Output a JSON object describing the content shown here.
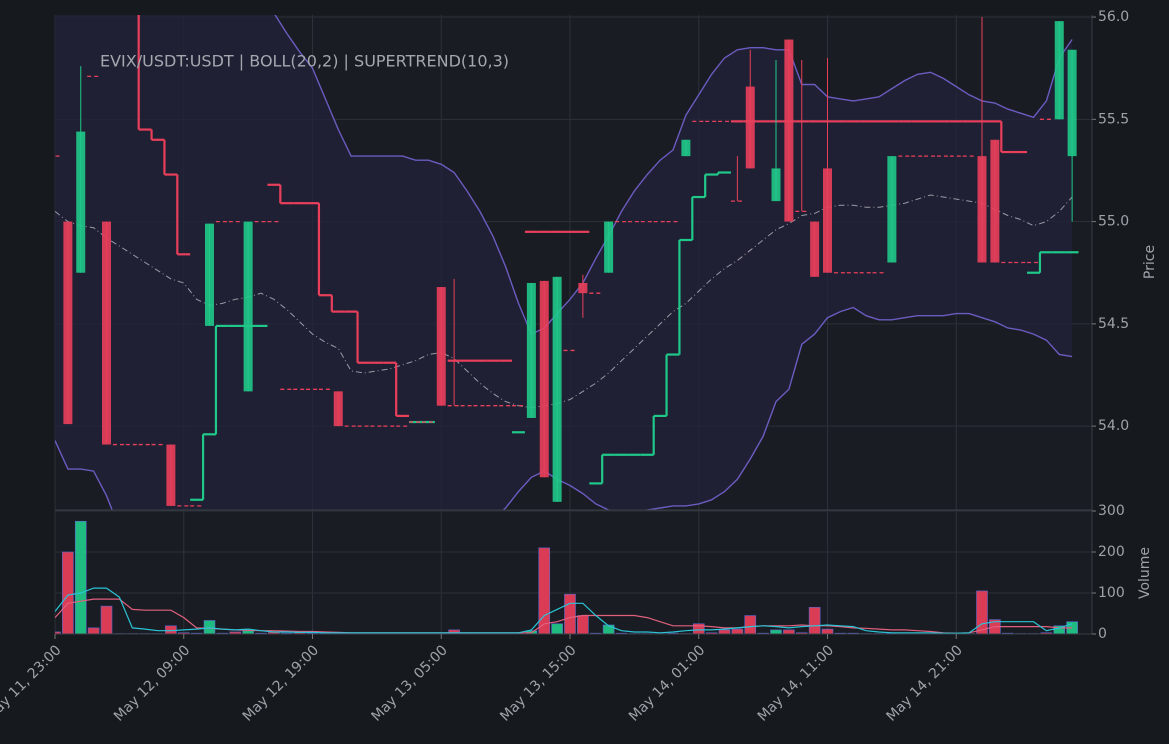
{
  "chart_data": [
    {
      "type": "candlestick",
      "title": "EVIX/USDT:USDT | BOLL(20,2) | SUPERTREND(10,3)",
      "ylabel": "Price",
      "up_color": "#20c98a",
      "down_color": "#ea3f5b",
      "ylim": [
        53.59,
        56.01
      ],
      "yticks": [
        {
          "value": 54.0,
          "label": "54.0"
        },
        {
          "value": 54.5,
          "label": "54.5"
        },
        {
          "value": 55.0,
          "label": "55.0"
        },
        {
          "value": 55.5,
          "label": "55.5"
        },
        {
          "value": 56.0,
          "label": "56.0"
        }
      ],
      "grid": true,
      "open": [
        55.32,
        55.0,
        54.75,
        55.71,
        55.0,
        53.91,
        53.91,
        53.91,
        53.91,
        53.91,
        53.61,
        53.61,
        54.49,
        55.0,
        55.0,
        54.17,
        55.0,
        55.0,
        54.18,
        54.18,
        54.18,
        54.18,
        54.17,
        54.0,
        54.0,
        54.0,
        54.0,
        54.0,
        54.02,
        54.02,
        54.68,
        54.1,
        54.1,
        54.1,
        54.1,
        54.1,
        54.1,
        54.04,
        54.71,
        53.63,
        54.37,
        54.7,
        54.65,
        54.75,
        55.0,
        55.0,
        55.0,
        55.0,
        55.0,
        55.32,
        55.49,
        55.49,
        55.49,
        55.1,
        55.66,
        55.49,
        55.1,
        55.89,
        55.05,
        55.0,
        55.26,
        54.75,
        54.75,
        54.75,
        54.75,
        54.8,
        55.32,
        55.32,
        55.32,
        55.32,
        55.32,
        55.32,
        55.32,
        55.4,
        54.8,
        54.8,
        54.8,
        55.5,
        55.5,
        55.32
      ],
      "high": [
        55.32,
        55.0,
        55.76,
        55.71,
        55.0,
        53.91,
        53.91,
        53.91,
        53.91,
        53.91,
        53.61,
        53.61,
        54.99,
        55.0,
        55.0,
        55.0,
        55.0,
        55.0,
        54.18,
        54.18,
        54.18,
        54.18,
        54.17,
        54.0,
        54.0,
        54.0,
        54.0,
        54.0,
        54.02,
        54.02,
        54.68,
        54.72,
        54.1,
        54.1,
        54.1,
        54.1,
        54.1,
        54.7,
        54.71,
        54.73,
        54.37,
        54.74,
        54.65,
        55.0,
        55.0,
        55.0,
        55.0,
        55.0,
        55.0,
        55.4,
        55.49,
        55.49,
        55.49,
        55.32,
        55.84,
        55.49,
        55.79,
        55.89,
        55.79,
        55.0,
        55.8,
        54.75,
        54.75,
        54.75,
        54.75,
        55.32,
        55.32,
        55.32,
        55.32,
        55.32,
        55.32,
        55.32,
        56.0,
        55.4,
        54.8,
        54.8,
        54.8,
        55.5,
        55.98,
        55.84
      ],
      "low": [
        55.32,
        54.01,
        54.75,
        55.71,
        53.91,
        53.91,
        53.91,
        53.91,
        53.91,
        53.61,
        53.61,
        53.61,
        54.49,
        55.0,
        55.0,
        54.17,
        55.0,
        55.0,
        54.18,
        54.18,
        54.18,
        54.18,
        54.0,
        54.0,
        54.0,
        54.0,
        54.0,
        54.0,
        54.02,
        54.02,
        54.1,
        54.1,
        54.1,
        54.1,
        54.1,
        54.1,
        54.1,
        54.04,
        53.75,
        53.63,
        54.37,
        54.53,
        54.65,
        54.75,
        55.0,
        55.0,
        55.0,
        55.0,
        55.0,
        55.32,
        55.49,
        55.49,
        55.49,
        55.1,
        55.26,
        55.49,
        55.1,
        55.0,
        55.05,
        54.73,
        54.75,
        54.75,
        54.75,
        54.75,
        54.75,
        54.8,
        55.32,
        55.32,
        55.32,
        55.32,
        55.32,
        55.32,
        54.8,
        54.8,
        54.8,
        54.8,
        54.8,
        55.5,
        55.5,
        55.0
      ],
      "close": [
        55.32,
        54.01,
        55.44,
        55.71,
        53.91,
        53.91,
        53.91,
        53.91,
        53.91,
        53.61,
        53.61,
        53.61,
        54.99,
        55.0,
        55.0,
        55.0,
        55.0,
        55.0,
        54.18,
        54.18,
        54.18,
        54.18,
        54.0,
        54.0,
        54.0,
        54.0,
        54.0,
        54.0,
        54.02,
        54.02,
        54.1,
        54.1,
        54.1,
        54.1,
        54.1,
        54.1,
        54.1,
        54.7,
        53.75,
        54.73,
        54.37,
        54.65,
        54.65,
        55.0,
        55.0,
        55.0,
        55.0,
        55.0,
        55.0,
        55.4,
        55.49,
        55.49,
        55.49,
        55.1,
        55.26,
        55.49,
        55.26,
        55.0,
        55.05,
        54.73,
        54.75,
        54.75,
        54.75,
        54.75,
        54.75,
        55.32,
        55.32,
        55.32,
        55.32,
        55.32,
        55.32,
        55.32,
        54.8,
        54.8,
        54.8,
        54.8,
        54.8,
        55.5,
        55.98,
        55.84
      ],
      "bollinger": {
        "color": "#6a5cc0",
        "middle_color": "#9a9aa4",
        "fill": "#22223a",
        "upper": [
          56.4,
          56.4,
          56.4,
          56.4,
          56.4,
          56.4,
          56.4,
          56.4,
          56.4,
          56.4,
          56.4,
          56.4,
          56.4,
          56.4,
          56.3,
          56.2,
          56.1,
          56.02,
          55.92,
          55.83,
          55.75,
          55.6,
          55.45,
          55.32,
          55.32,
          55.32,
          55.32,
          55.32,
          55.3,
          55.3,
          55.28,
          55.24,
          55.15,
          55.05,
          54.93,
          54.78,
          54.6,
          54.45,
          54.48,
          54.55,
          54.62,
          54.7,
          54.82,
          54.93,
          55.05,
          55.15,
          55.23,
          55.3,
          55.35,
          55.52,
          55.62,
          55.72,
          55.8,
          55.84,
          55.85,
          55.85,
          55.84,
          55.84,
          55.67,
          55.67,
          55.61,
          55.6,
          55.59,
          55.6,
          55.61,
          55.65,
          55.69,
          55.72,
          55.73,
          55.7,
          55.66,
          55.62,
          55.59,
          55.58,
          55.55,
          55.53,
          55.51,
          55.59,
          55.8,
          55.89
        ],
        "middle": [
          55.05,
          55.0,
          54.98,
          54.97,
          54.92,
          54.88,
          54.84,
          54.8,
          54.76,
          54.72,
          54.7,
          54.62,
          54.59,
          54.6,
          54.62,
          54.63,
          54.65,
          54.62,
          54.57,
          54.51,
          54.45,
          54.41,
          54.38,
          54.27,
          54.26,
          54.27,
          54.28,
          54.3,
          54.32,
          54.35,
          54.36,
          54.33,
          54.27,
          54.21,
          54.16,
          54.12,
          54.1,
          54.09,
          54.1,
          54.11,
          54.13,
          54.17,
          54.21,
          54.26,
          54.32,
          54.38,
          54.44,
          54.5,
          54.56,
          54.6,
          54.66,
          54.72,
          54.77,
          54.81,
          54.86,
          54.91,
          54.96,
          54.99,
          55.03,
          55.04,
          55.07,
          55.08,
          55.08,
          55.07,
          55.07,
          55.08,
          55.09,
          55.11,
          55.13,
          55.12,
          55.11,
          55.1,
          55.09,
          55.06,
          55.03,
          55.01,
          54.98,
          55.0,
          55.05,
          55.12
        ],
        "lower": [
          53.93,
          53.79,
          53.79,
          53.78,
          53.66,
          53.5,
          53.3,
          53.3,
          53.3,
          53.3,
          53.3,
          53.3,
          53.3,
          53.2,
          53.2,
          53.2,
          53.2,
          53.2,
          53.2,
          53.2,
          53.2,
          53.2,
          53.2,
          53.2,
          53.2,
          53.2,
          53.2,
          53.2,
          53.2,
          53.2,
          53.2,
          53.3,
          53.4,
          53.5,
          53.55,
          53.6,
          53.68,
          53.75,
          53.78,
          53.74,
          53.71,
          53.67,
          53.62,
          53.59,
          53.58,
          53.58,
          53.59,
          53.6,
          53.61,
          53.61,
          53.62,
          53.64,
          53.68,
          53.74,
          53.84,
          53.95,
          54.12,
          54.18,
          54.4,
          54.45,
          54.53,
          54.56,
          54.58,
          54.54,
          54.52,
          54.52,
          54.53,
          54.54,
          54.54,
          54.54,
          54.55,
          54.55,
          54.53,
          54.51,
          54.48,
          54.47,
          54.45,
          54.42,
          54.35,
          54.34
        ]
      },
      "supertrend": {
        "down_color": "#ea3f5b",
        "up_color": "#20c98a",
        "down": [
          null,
          null,
          null,
          null,
          null,
          null,
          56.1,
          55.45,
          55.4,
          55.23,
          54.84,
          null,
          null,
          null,
          null,
          null,
          null,
          55.18,
          55.09,
          55.09,
          55.09,
          54.64,
          54.56,
          54.56,
          54.31,
          54.31,
          54.31,
          54.05,
          null,
          null,
          null,
          54.32,
          54.32,
          54.32,
          54.32,
          54.32,
          null,
          54.95,
          54.95,
          54.95,
          54.95,
          54.95,
          null,
          null,
          null,
          null,
          null,
          null,
          null,
          null,
          null,
          null,
          null,
          55.49,
          55.49,
          55.49,
          55.49,
          55.49,
          55.49,
          55.49,
          55.49,
          55.49,
          55.49,
          55.49,
          55.49,
          55.49,
          55.49,
          55.49,
          55.49,
          55.49,
          55.49,
          55.49,
          55.49,
          55.49,
          55.34,
          55.34,
          null,
          null,
          null,
          null
        ],
        "up": [
          null,
          null,
          null,
          null,
          null,
          null,
          null,
          null,
          null,
          null,
          null,
          53.64,
          53.96,
          54.49,
          54.49,
          54.49,
          54.49,
          null,
          null,
          null,
          null,
          null,
          null,
          null,
          null,
          null,
          null,
          null,
          54.02,
          54.02,
          null,
          null,
          null,
          null,
          null,
          null,
          53.97,
          null,
          null,
          null,
          null,
          null,
          53.72,
          53.86,
          53.86,
          53.86,
          53.86,
          54.05,
          54.35,
          54.91,
          55.12,
          55.23,
          55.24,
          null,
          null,
          null,
          null,
          null,
          null,
          null,
          null,
          null,
          null,
          null,
          null,
          null,
          null,
          null,
          null,
          null,
          null,
          null,
          null,
          null,
          null,
          null,
          54.75,
          54.85,
          54.85,
          54.85
        ]
      }
    },
    {
      "type": "bar",
      "ylabel": "Volume",
      "categories": [
        "May 11, 23:00",
        null,
        null,
        null,
        null,
        null,
        null,
        null,
        null,
        null,
        "May 12, 09:00",
        null,
        null,
        null,
        null,
        null,
        null,
        null,
        null,
        null,
        "May 12, 19:00",
        null,
        null,
        null,
        null,
        null,
        null,
        null,
        null,
        null,
        "May 13, 05:00",
        null,
        null,
        null,
        null,
        null,
        null,
        null,
        null,
        null,
        "May 13, 15:00",
        null,
        null,
        null,
        null,
        null,
        null,
        null,
        null,
        null,
        "May 14, 01:00",
        null,
        null,
        null,
        null,
        null,
        null,
        null,
        null,
        null,
        "May 14, 11:00",
        null,
        null,
        null,
        null,
        null,
        null,
        null,
        null,
        null,
        "May 14, 21:00",
        null,
        null,
        null,
        null,
        null,
        null,
        null,
        null,
        null
      ],
      "values": [
        5,
        200,
        275,
        15,
        68,
        1,
        1,
        1,
        1,
        20,
        3,
        2,
        33,
        2,
        5,
        8,
        2,
        5,
        2,
        3,
        2,
        2,
        2,
        1,
        1,
        1,
        1,
        1,
        1,
        1,
        2,
        10,
        2,
        1,
        1,
        1,
        2,
        8,
        210,
        25,
        97,
        45,
        2,
        22,
        2,
        1,
        1,
        1,
        2,
        1,
        25,
        3,
        10,
        12,
        45,
        2,
        10,
        10,
        3,
        65,
        12,
        2,
        2,
        1,
        1,
        2,
        1,
        1,
        1,
        1,
        1,
        1,
        105,
        35,
        2,
        1,
        1,
        3,
        20,
        30
      ],
      "ylim": [
        0,
        300
      ],
      "yticks": [
        0,
        100,
        200,
        300
      ],
      "grid": true,
      "lines": [
        {
          "color": "#e0607e",
          "values": [
            40,
            75,
            80,
            85,
            85,
            85,
            60,
            58,
            58,
            58,
            40,
            15,
            14,
            12,
            10,
            9,
            8,
            8,
            7,
            6,
            6,
            5,
            4,
            3,
            3,
            3,
            3,
            3,
            3,
            3,
            3,
            3,
            3,
            3,
            3,
            3,
            3,
            3,
            25,
            30,
            40,
            45,
            45,
            45,
            45,
            45,
            40,
            30,
            20,
            20,
            20,
            18,
            15,
            15,
            18,
            20,
            20,
            20,
            22,
            20,
            20,
            18,
            15,
            14,
            12,
            10,
            10,
            8,
            6,
            3,
            2,
            3,
            10,
            18,
            18,
            18,
            18,
            18,
            15,
            15
          ]
        },
        {
          "color": "#2ac4d6",
          "values": [
            55,
            95,
            100,
            112,
            112,
            90,
            15,
            12,
            8,
            8,
            10,
            12,
            15,
            12,
            10,
            12,
            8,
            5,
            5,
            4,
            4,
            3,
            3,
            3,
            3,
            3,
            3,
            3,
            3,
            3,
            3,
            3,
            3,
            3,
            3,
            3,
            3,
            10,
            45,
            60,
            75,
            75,
            45,
            20,
            8,
            5,
            5,
            3,
            5,
            8,
            10,
            10,
            12,
            15,
            18,
            20,
            18,
            15,
            18,
            20,
            22,
            20,
            18,
            8,
            5,
            3,
            3,
            3,
            3,
            2,
            2,
            3,
            25,
            30,
            30,
            30,
            30,
            8,
            15,
            25
          ]
        }
      ]
    }
  ]
}
